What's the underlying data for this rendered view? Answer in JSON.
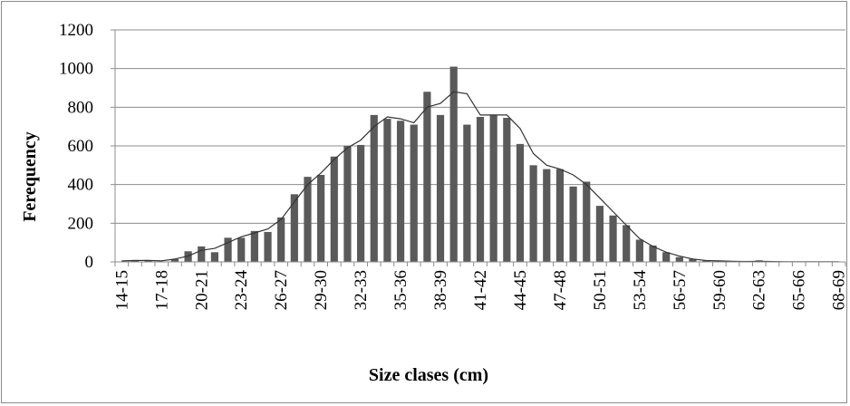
{
  "chart_data": {
    "type": "bar",
    "title": "",
    "xlabel": "Size clases (cm)",
    "ylabel": "Ferequency",
    "ylim": [
      0,
      1200
    ],
    "yticks": [
      0,
      200,
      400,
      600,
      800,
      1000,
      1200
    ],
    "grid": "horizontal",
    "legend": "none",
    "bar_color": "#5a5a5a",
    "line_color": "#333333",
    "x_tick_labels": [
      "14-15",
      "17-18",
      "20-21",
      "23-24",
      "26-27",
      "29-30",
      "32-33",
      "35-36",
      "38-39",
      "41-42",
      "44-45",
      "47-48",
      "50-51",
      "53-54",
      "56-57",
      "59-60",
      "62-63",
      "65-66",
      "68-69"
    ],
    "categories": [
      "14-15",
      "15-16",
      "16-17",
      "17-18",
      "18-19",
      "19-20",
      "20-21",
      "21-22",
      "22-23",
      "23-24",
      "24-25",
      "25-26",
      "26-27",
      "27-28",
      "28-29",
      "29-30",
      "30-31",
      "31-32",
      "32-33",
      "33-34",
      "34-35",
      "35-36",
      "36-37",
      "37-38",
      "38-39",
      "39-40",
      "40-41",
      "41-42",
      "42-43",
      "43-44",
      "44-45",
      "45-46",
      "46-47",
      "47-48",
      "48-49",
      "49-50",
      "50-51",
      "51-52",
      "52-53",
      "53-54",
      "54-55",
      "55-56",
      "56-57",
      "57-58",
      "58-59",
      "59-60",
      "60-61",
      "61-62",
      "62-63",
      "63-64",
      "64-65",
      "65-66",
      "66-67",
      "67-68",
      "68-69"
    ],
    "series": [
      {
        "type": "bar",
        "values": [
          2,
          10,
          8,
          2,
          15,
          55,
          80,
          50,
          125,
          125,
          160,
          155,
          230,
          350,
          440,
          450,
          545,
          600,
          605,
          760,
          740,
          730,
          710,
          880,
          760,
          1010,
          710,
          750,
          760,
          745,
          610,
          500,
          480,
          480,
          390,
          415,
          290,
          240,
          190,
          115,
          85,
          50,
          25,
          15,
          5,
          5,
          5,
          5,
          8,
          2,
          2,
          2,
          2,
          2,
          2
        ]
      },
      {
        "type": "line",
        "values": [
          5,
          7,
          8,
          5,
          15,
          30,
          60,
          70,
          100,
          130,
          150,
          170,
          220,
          310,
          400,
          460,
          530,
          590,
          630,
          700,
          750,
          740,
          720,
          800,
          820,
          880,
          870,
          760,
          760,
          760,
          690,
          560,
          500,
          480,
          450,
          400,
          330,
          260,
          190,
          120,
          80,
          50,
          30,
          15,
          7,
          5,
          3,
          2,
          3,
          2,
          1,
          1,
          1,
          1,
          1
        ]
      }
    ]
  }
}
